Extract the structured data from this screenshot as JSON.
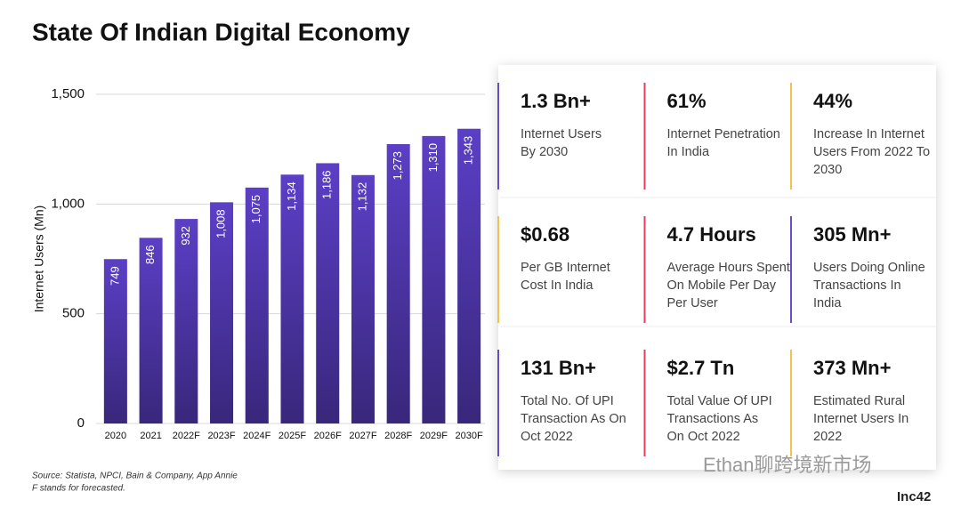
{
  "title": "State Of Indian Digital Economy",
  "chart_data": {
    "type": "bar",
    "y_label": "Internet Users (Mn)",
    "categories": [
      "2020",
      "2021",
      "2022F",
      "2023F",
      "2024F",
      "2025F",
      "2026F",
      "2027F",
      "2028F",
      "2029F",
      "2030F"
    ],
    "values": [
      749,
      846,
      932,
      1008,
      1075,
      1134,
      1186,
      1132,
      1273,
      1310,
      1343
    ],
    "value_labels": [
      "749",
      "846",
      "932",
      "1,008",
      "1,075",
      "1,134",
      "1,186",
      "1,132",
      "1,273",
      "1,310",
      "1,343"
    ],
    "color": "#5b3fc6",
    "ylim": [
      0,
      1500
    ],
    "yticks": [
      0,
      500,
      {
        "value": 1000,
        "label": "1,000"
      },
      {
        "value": 1500,
        "label": "1,500"
      }
    ],
    "grid": true
  },
  "cards": [
    {
      "value": "1.3 Bn+",
      "label": [
        "Internet Users",
        "By 2030"
      ],
      "accent": "#6a4bc8"
    },
    {
      "value": "61%",
      "label": [
        "Internet Penetration",
        "In India"
      ],
      "accent": "#e0405a"
    },
    {
      "value": "44%",
      "label": [
        "Increase In Internet",
        "Users From 2022 To",
        "2030"
      ],
      "accent": "#f2c14e"
    },
    {
      "value": "$0.68",
      "label": [
        "Per GB Internet",
        "Cost In India"
      ],
      "accent": "#f2c14e"
    },
    {
      "value": "4.7 Hours",
      "label": [
        "Average Hours Spent",
        "On Mobile Per Day",
        "Per User"
      ],
      "accent": "#e0405a"
    },
    {
      "value": "305 Mn+",
      "label": [
        "Users Doing Online",
        "Transactions In",
        "India"
      ],
      "accent": "#6a4bc8"
    },
    {
      "value": "131 Bn+",
      "label": [
        "Total No. Of UPI",
        "Transaction As On",
        "Oct 2022"
      ],
      "accent": "#6a4bc8"
    },
    {
      "value": "$2.7 Tn",
      "label": [
        "Total Value Of UPI",
        "Transactions As",
        "On Oct 2022"
      ],
      "accent": "#e0405a"
    },
    {
      "value": "373 Mn+",
      "label": [
        "Estimated Rural",
        "Internet Users In",
        "2022"
      ],
      "accent": "#f2c14e"
    }
  ],
  "source": [
    "Source: Statista, NPCI, Bain & Company, App Annie",
    "F stands for forecasted."
  ],
  "watermark": "Ethan聊跨境新市场",
  "logo": "Inc42"
}
